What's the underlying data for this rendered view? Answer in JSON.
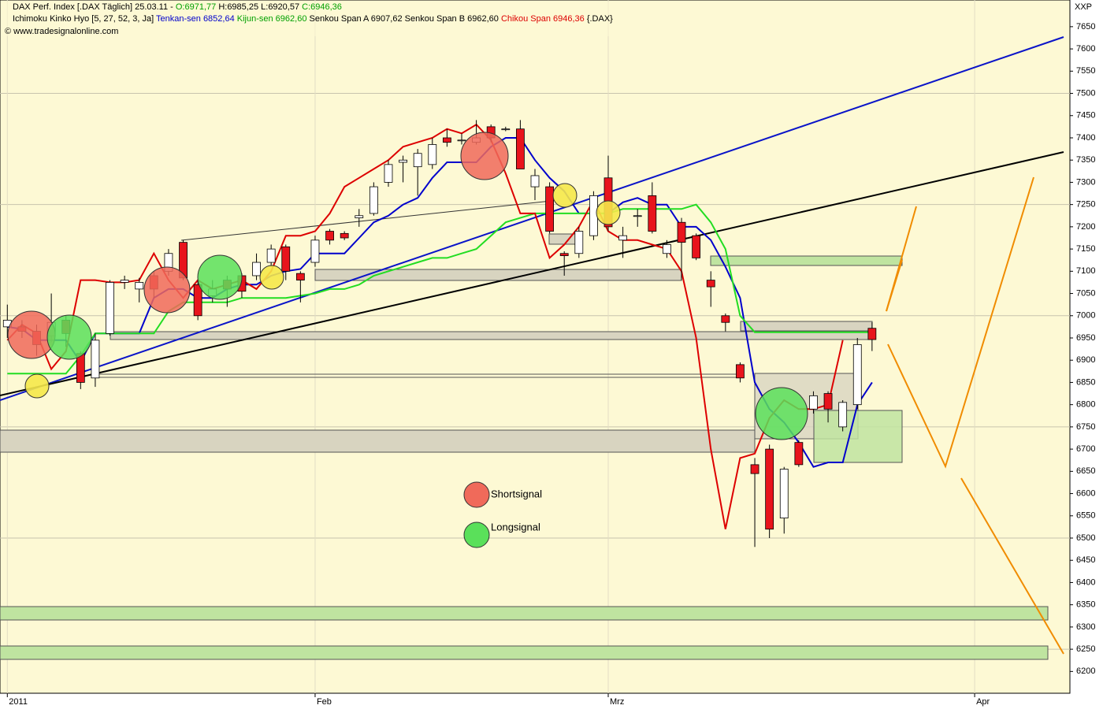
{
  "chart_data": {
    "type": "candlestick",
    "title": "DAX Perf. Index [.DAX  Täglich] 25.03.11 -",
    "ohlc_labels": [
      "O:6971,77",
      "H:6985,25",
      "L:6920,57",
      "C:6946,36"
    ],
    "indicator": "Ichimoku Kinko Hyo [5, 27, 52, 3, Ja]",
    "senkou": "Senkou Span A 6907,62 Senkou Span B 6962,60",
    "symbol": "{.DAX}",
    "source": "© www.tradesignalonline.com",
    "corner_label": "XXP",
    "annotations": [
      "Shortsignal",
      "Longsignal"
    ],
    "up_color": "#ffffff",
    "down_color": "#e8141c",
    "open": [
      6975,
      6975,
      6965,
      6955,
      6990,
      6915,
      6860,
      6960,
      7075,
      7060,
      7090,
      7100,
      7165,
      7070,
      7045,
      7080,
      7090,
      7090,
      7120,
      7155,
      7095,
      7120,
      7190,
      7185,
      7220,
      7230,
      7300,
      7345,
      7335,
      7340,
      7400,
      7395,
      7390,
      7425,
      7420,
      7420,
      7290,
      7290,
      7140,
      7140,
      7180,
      7310,
      7170,
      7225,
      7270,
      7140,
      7210,
      7180,
      7080,
      7000,
      6890,
      6665,
      6700,
      6545,
      6715,
      6790,
      6825,
      6750,
      6800,
      6971.77
    ],
    "high": [
      7025,
      6990,
      6980,
      7050,
      7000,
      6920,
      6960,
      7080,
      7090,
      7085,
      7100,
      7150,
      7170,
      7080,
      7080,
      7090,
      7095,
      7140,
      7160,
      7160,
      7100,
      7180,
      7195,
      7190,
      7240,
      7300,
      7350,
      7360,
      7375,
      7400,
      7420,
      7410,
      7440,
      7430,
      7425,
      7440,
      7330,
      7300,
      7145,
      7200,
      7280,
      7360,
      7200,
      7240,
      7300,
      7170,
      7220,
      7185,
      7100,
      7005,
      6895,
      6680,
      6710,
      6660,
      6720,
      6830,
      6830,
      6810,
      6950,
      6985.25
    ],
    "low": [
      6950,
      6950,
      6910,
      6940,
      6930,
      6835,
      6840,
      6955,
      7060,
      7030,
      7040,
      7090,
      7080,
      6990,
      7030,
      7020,
      7040,
      7080,
      7110,
      7080,
      7030,
      7110,
      7160,
      7170,
      7200,
      7225,
      7290,
      7300,
      7270,
      7330,
      7380,
      7385,
      7385,
      7390,
      7415,
      7330,
      7260,
      7185,
      7090,
      7130,
      7170,
      7190,
      7130,
      7200,
      7185,
      7130,
      7080,
      7125,
      7020,
      6965,
      6850,
      6480,
      6500,
      6510,
      6660,
      6780,
      6760,
      6740,
      6790,
      6920.57
    ],
    "close": [
      6990,
      6965,
      6935,
      6985,
      6960,
      6850,
      6945,
      7075,
      7080,
      7075,
      7060,
      7140,
      7085,
      7000,
      7060,
      7060,
      7055,
      7120,
      7150,
      7100,
      7080,
      7170,
      7170,
      7175,
      7225,
      7290,
      7340,
      7350,
      7365,
      7385,
      7390,
      7395,
      7400,
      7400,
      7420,
      7330,
      7315,
      7190,
      7135,
      7190,
      7270,
      7200,
      7180,
      7225,
      7190,
      7160,
      7165,
      7130,
      7065,
      6985,
      6860,
      6645,
      6520,
      6655,
      6665,
      6820,
      6790,
      6805,
      6935,
      6946.36
    ],
    "series": [
      {
        "name": "Tenkan-sen 6852,64",
        "color": "#0000cc",
        "values": [
          6975,
          6970,
          6945,
          6945,
          6945,
          6895,
          6960,
          6960,
          6960,
          6960,
          7040,
          7060,
          7060,
          7040,
          7040,
          7060,
          7070,
          7070,
          7090,
          7100,
          7105,
          7140,
          7140,
          7140,
          7175,
          7210,
          7225,
          7250,
          7265,
          7310,
          7345,
          7345,
          7345,
          7380,
          7400,
          7400,
          7350,
          7310,
          7280,
          7230,
          7230,
          7230,
          7255,
          7265,
          7250,
          7250,
          7200,
          7200,
          7170,
          7110,
          7040,
          6850,
          6790,
          6760,
          6715,
          6660,
          6670,
          6670,
          6800,
          6850
        ]
      },
      {
        "name": "Kijun-sen 6962,60",
        "color": "#22dd22",
        "values": [
          6870,
          6870,
          6870,
          6870,
          6870,
          6910,
          6960,
          6960,
          6960,
          6960,
          6960,
          7010,
          7030,
          7030,
          7030,
          7030,
          7040,
          7040,
          7040,
          7040,
          7045,
          7050,
          7060,
          7060,
          7070,
          7090,
          7100,
          7110,
          7120,
          7130,
          7130,
          7140,
          7150,
          7180,
          7210,
          7220,
          7230,
          7230,
          7230,
          7230,
          7230,
          7230,
          7240,
          7240,
          7240,
          7240,
          7240,
          7250,
          7210,
          7150,
          7000,
          6963,
          6963,
          6963,
          6963,
          6963,
          6963,
          6963,
          6963,
          6963
        ]
      },
      {
        "name": "Chikou Span 6946,36",
        "color": "#dd0000",
        "values": [
          6945,
          6980,
          6960,
          6880,
          6920,
          7080,
          7080,
          7075,
          7075,
          7080,
          7140,
          7080,
          7040,
          7080,
          7060,
          7070,
          7080,
          7060,
          7100,
          7180,
          7180,
          7190,
          7230,
          7290,
          7310,
          7330,
          7350,
          7380,
          7390,
          7400,
          7420,
          7410,
          7430,
          7395,
          7320,
          7230,
          7230,
          7130,
          7160,
          7200,
          7260,
          7190,
          7170,
          7170,
          7160,
          7150,
          7100,
          6950,
          6700,
          6520,
          6680,
          6690,
          6770,
          6810,
          6790,
          6790,
          6800,
          6945,
          null,
          null
        ]
      }
    ],
    "xlim": [
      -0.5,
      72.5
    ],
    "xticks": [
      {
        "value": 0,
        "label": "2011"
      },
      {
        "value": 21,
        "label": "Feb"
      },
      {
        "value": 41,
        "label": "Mrz"
      },
      {
        "value": 66,
        "label": "Apr"
      }
    ],
    "ylim": [
      6151,
      7710
    ],
    "yticks": [
      6200,
      6250,
      6300,
      6350,
      6400,
      6450,
      6500,
      6550,
      6600,
      6650,
      6700,
      6750,
      6800,
      6850,
      6900,
      6950,
      7000,
      7050,
      7100,
      7150,
      7200,
      7250,
      7300,
      7350,
      7400,
      7450,
      7500,
      7550,
      7600,
      7650
    ],
    "grid": true
  }
}
